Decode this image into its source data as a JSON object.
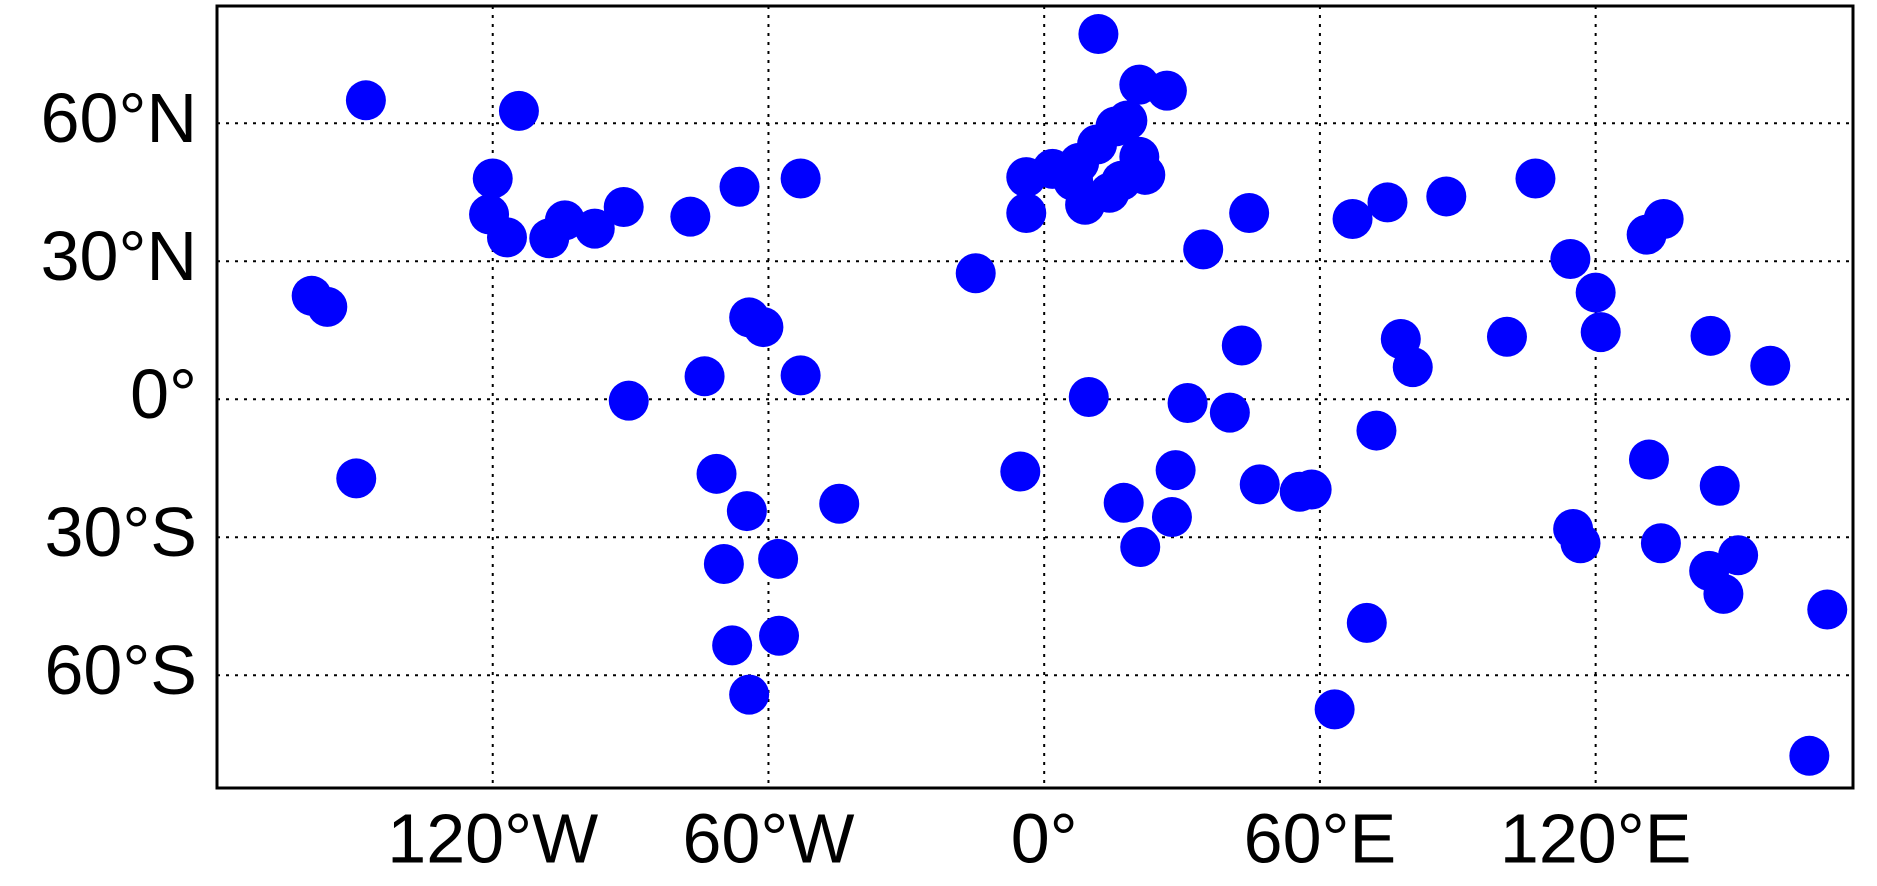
{
  "chart_data": {
    "type": "scatter",
    "color": "#0000ff",
    "grid": true,
    "xlim": [
      -180,
      176
    ],
    "ylim": [
      -84.5,
      85.5
    ],
    "xticks": [
      {
        "value": -120,
        "label": "120°W"
      },
      {
        "value": -60,
        "label": "60°W"
      },
      {
        "value": 0,
        "label": "0°"
      },
      {
        "value": 60,
        "label": "60°E"
      },
      {
        "value": 120,
        "label": "120°E"
      }
    ],
    "yticks": [
      {
        "value": -60,
        "label": "60°S"
      },
      {
        "value": -30,
        "label": "30°S"
      },
      {
        "value": 0,
        "label": "0°"
      },
      {
        "value": 30,
        "label": "30°N"
      },
      {
        "value": 60,
        "label": "60°N"
      }
    ],
    "x": [
      11.8,
      -147.6,
      -114.3,
      -120,
      -120.8,
      -116.9,
      -107.7,
      -104.3,
      -97.8,
      -91.5,
      -77,
      -66.3,
      -53,
      -159.4,
      -156,
      -90.4,
      -149.7,
      -64.2,
      -61.1,
      -53,
      -73.9,
      -71.3,
      -64.7,
      -44.6,
      -69.7,
      -57.9,
      -67.9,
      -57.7,
      -64.2,
      -14.9,
      -3.9,
      -3.9,
      1.8,
      7.6,
      11.5,
      15.5,
      16.8,
      8.9,
      20.7,
      14.2,
      20.7,
      26.7,
      18.1,
      22,
      6.3,
      34.6,
      44.6,
      43,
      9.7,
      31.2,
      40.4,
      -5.2,
      28.6,
      46.9,
      55.6,
      58.2,
      17.3,
      27.8,
      20.9,
      67.1,
      74.7,
      87.5,
      106.9,
      114.5,
      120,
      121.1,
      100.7,
      77.6,
      80.2,
      72.3,
      70.2,
      63.2,
      131.1,
      134.8,
      145,
      158,
      131.6,
      147,
      115.1,
      116.7,
      134.2,
      144.7,
      151,
      147.8,
      170.4,
      166.5
    ],
    "y": [
      79.4,
      65,
      62.7,
      48,
      40.2,
      35.2,
      35,
      38.9,
      37.1,
      41.8,
      39.7,
      46.2,
      48,
      22.5,
      20.1,
      -0.3,
      -17.2,
      17.8,
      15.7,
      5.2,
      5,
      -16.2,
      -24.3,
      -22.7,
      -35.8,
      -34.7,
      -53.5,
      -51.4,
      -64.2,
      27.4,
      48.3,
      40.5,
      50.1,
      51.4,
      55.4,
      59.3,
      47.5,
      42.3,
      52.7,
      44.9,
      68.4,
      67.1,
      60.6,
      48.8,
      47.5,
      32.6,
      40.5,
      11.7,
      0.5,
      -0.8,
      -2.9,
      -15.7,
      -15.4,
      -18.5,
      -20.1,
      -19.6,
      -22.5,
      -25.6,
      -32.1,
      39.2,
      42.8,
      44.1,
      48,
      30.5,
      23.2,
      14.6,
      13.6,
      13.1,
      7,
      -6.8,
      -48.6,
      -67.4,
      35.8,
      39.2,
      13.8,
      7.3,
      -13.1,
      -18.8,
      -28.2,
      -31.3,
      -31.3,
      -37.3,
      -33.9,
      -42.3,
      -45.7,
      -77.5
    ]
  }
}
